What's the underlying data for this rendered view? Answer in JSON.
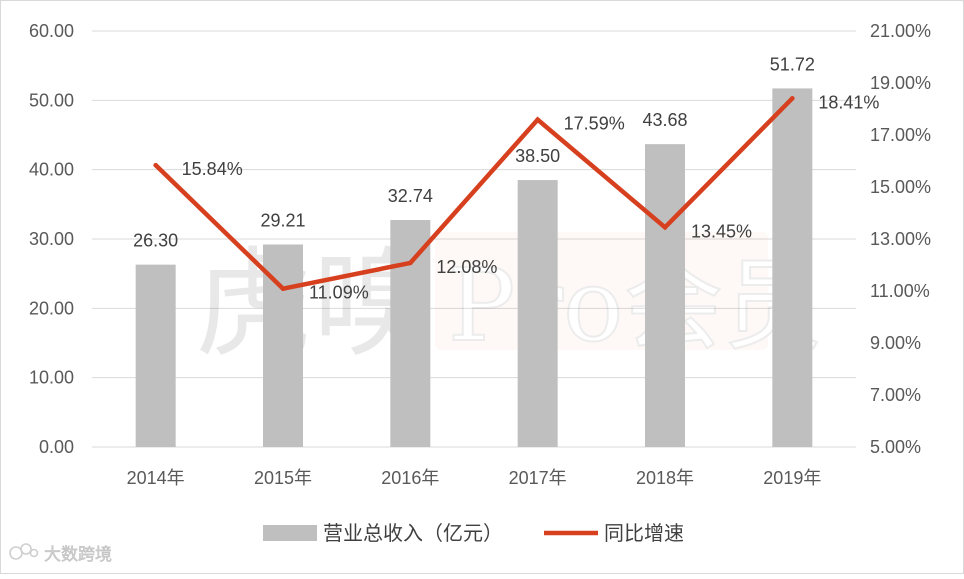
{
  "chart_data": {
    "type": "bar",
    "categories": [
      "2014年",
      "2015年",
      "2016年",
      "2017年",
      "2018年",
      "2019年"
    ],
    "series": [
      {
        "name": "营业总收入（亿元）",
        "type": "bar",
        "axis": "left",
        "values": [
          26.3,
          29.21,
          32.74,
          38.5,
          43.68,
          51.72
        ],
        "labels": [
          "26.30",
          "29.21",
          "32.74",
          "38.50",
          "43.68",
          "51.72"
        ],
        "color": "#bfbfbf"
      },
      {
        "name": "同比增速",
        "type": "line",
        "axis": "right",
        "values": [
          15.84,
          11.09,
          12.08,
          17.59,
          13.45,
          18.41
        ],
        "labels": [
          "15.84%",
          "11.09%",
          "12.08%",
          "17.59%",
          "13.45%",
          "18.41%"
        ],
        "color": "#d7401f"
      }
    ],
    "y_left": {
      "lim": [
        0,
        60
      ],
      "ticks": [
        "0.00",
        "10.00",
        "20.00",
        "30.00",
        "40.00",
        "50.00",
        "60.00"
      ]
    },
    "y_right": {
      "lim": [
        5,
        21
      ],
      "ticks": [
        "5.00%",
        "7.00%",
        "9.00%",
        "11.00%",
        "13.00%",
        "15.00%",
        "17.00%",
        "19.00%",
        "21.00%"
      ]
    },
    "grid": true,
    "legend": "bottom"
  },
  "watermark": {
    "text": "虎嗅Pro会员"
  },
  "corner_logo": {
    "text": "大数跨境"
  },
  "colors": {
    "grid": "#d9d9d9",
    "bar": "#bfbfbf",
    "line": "#d7401f"
  }
}
